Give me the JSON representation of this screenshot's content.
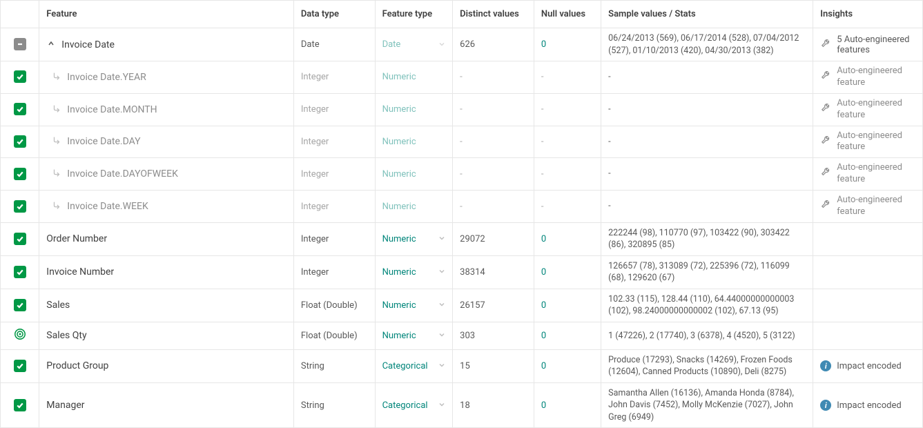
{
  "columns": {
    "feature": "Feature",
    "datatype": "Data type",
    "featuretype": "Feature type",
    "distinct": "Distinct values",
    "nullvals": "Null values",
    "sample": "Sample values / Stats",
    "insights": "Insights"
  },
  "rows": [
    {
      "check": "indeterminate",
      "feature": "Invoice Date",
      "expand": "collapse",
      "sub": false,
      "datatype": "Date",
      "featuretype": "Date",
      "ftype_muted": true,
      "ftype_dropdown": true,
      "distinct": "626",
      "null": "0",
      "sample": "06/24/2013 (569), 06/17/2014 (528), 07/04/2012 (527), 01/10/2013 (420), 04/30/2013 (382)",
      "insight_kind": "wrench",
      "insight_text": "5 Auto-engineered features"
    },
    {
      "check": "checked",
      "feature": "Invoice Date.YEAR",
      "sub": true,
      "datatype": "Integer",
      "featuretype": "Numeric",
      "ftype_muted": true,
      "ftype_dropdown": false,
      "distinct": "-",
      "null": "-",
      "sample": "-",
      "insight_kind": "wrench",
      "insight_text": "Auto-engineered feature",
      "dim": true
    },
    {
      "check": "checked",
      "feature": "Invoice Date.MONTH",
      "sub": true,
      "datatype": "Integer",
      "featuretype": "Numeric",
      "ftype_muted": true,
      "ftype_dropdown": false,
      "distinct": "-",
      "null": "-",
      "sample": "-",
      "insight_kind": "wrench",
      "insight_text": "Auto-engineered feature",
      "dim": true
    },
    {
      "check": "checked",
      "feature": "Invoice Date.DAY",
      "sub": true,
      "datatype": "Integer",
      "featuretype": "Numeric",
      "ftype_muted": true,
      "ftype_dropdown": false,
      "distinct": "-",
      "null": "-",
      "sample": "-",
      "insight_kind": "wrench",
      "insight_text": "Auto-engineered feature",
      "dim": true
    },
    {
      "check": "checked",
      "feature": "Invoice Date.DAYOFWEEK",
      "sub": true,
      "datatype": "Integer",
      "featuretype": "Numeric",
      "ftype_muted": true,
      "ftype_dropdown": false,
      "distinct": "-",
      "null": "-",
      "sample": "-",
      "insight_kind": "wrench",
      "insight_text": "Auto-engineered feature",
      "dim": true
    },
    {
      "check": "checked",
      "feature": "Invoice Date.WEEK",
      "sub": true,
      "datatype": "Integer",
      "featuretype": "Numeric",
      "ftype_muted": true,
      "ftype_dropdown": false,
      "distinct": "-",
      "null": "-",
      "sample": "-",
      "insight_kind": "wrench",
      "insight_text": "Auto-engineered feature",
      "dim": true
    },
    {
      "check": "checked",
      "feature": "Order Number",
      "sub": false,
      "datatype": "Integer",
      "featuretype": "Numeric",
      "ftype_muted": false,
      "ftype_dropdown": true,
      "distinct": "29072",
      "null": "0",
      "sample": "222244 (98), 110770 (97), 103422 (90), 303422 (86), 320895 (85)",
      "insight_kind": "none",
      "insight_text": ""
    },
    {
      "check": "checked",
      "feature": "Invoice Number",
      "sub": false,
      "datatype": "Integer",
      "featuretype": "Numeric",
      "ftype_muted": false,
      "ftype_dropdown": true,
      "distinct": "38314",
      "null": "0",
      "sample": "126657 (78), 313089 (72), 225396 (72), 116099 (68), 129620 (67)",
      "insight_kind": "none",
      "insight_text": ""
    },
    {
      "check": "checked",
      "feature": "Sales",
      "sub": false,
      "datatype": "Float (Double)",
      "featuretype": "Numeric",
      "ftype_muted": false,
      "ftype_dropdown": true,
      "distinct": "26157",
      "null": "0",
      "sample": "102.33 (115), 128.44 (110), 64.44000000000003 (102), 98.24000000000002 (102), 67.13 (95)",
      "insight_kind": "none",
      "insight_text": ""
    },
    {
      "check": "target",
      "feature": "Sales Qty",
      "sub": false,
      "datatype": "Float (Double)",
      "featuretype": "Numeric",
      "ftype_muted": false,
      "ftype_dropdown": true,
      "distinct": "303",
      "null": "0",
      "sample": "1 (47226), 2 (17740), 3 (6378), 4 (4520), 5 (3122)",
      "insight_kind": "none",
      "insight_text": ""
    },
    {
      "check": "checked",
      "feature": "Product Group",
      "sub": false,
      "datatype": "String",
      "featuretype": "Categorical",
      "ftype_muted": false,
      "ftype_dropdown": true,
      "distinct": "15",
      "null": "0",
      "sample": "Produce (17293), Snacks (14269), Frozen Foods (12604), Canned Products (10890), Deli (8275)",
      "insight_kind": "info",
      "insight_text": "Impact encoded"
    },
    {
      "check": "checked",
      "feature": "Manager",
      "sub": false,
      "datatype": "String",
      "featuretype": "Categorical",
      "ftype_muted": false,
      "ftype_dropdown": true,
      "distinct": "18",
      "null": "0",
      "sample": "Samantha Allen (16136), Amanda Honda (8784), John Davis (7452), Molly McKenzie (7027), John Greg (6949)",
      "insight_kind": "info",
      "insight_text": "Impact encoded"
    }
  ]
}
